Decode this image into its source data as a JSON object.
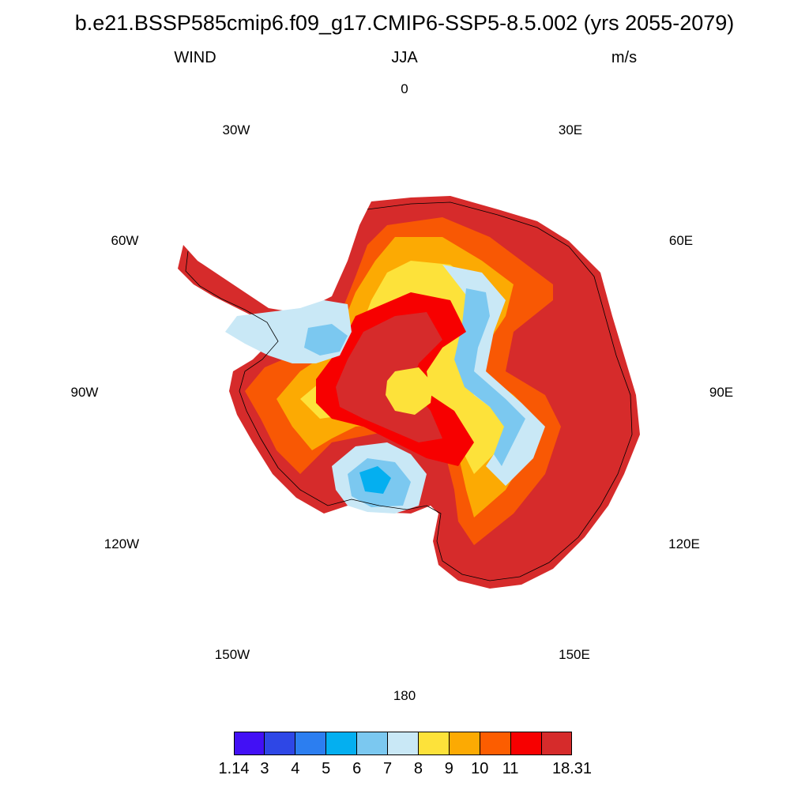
{
  "title": "b.e21.BSSP585cmip6.f09_g17.CMIP6-SSP5-8.5.002 (yrs 2055-2079)",
  "subtitle_left": "WIND",
  "subtitle_center": "JJA",
  "subtitle_right": "m/s",
  "longitude_labels": {
    "lon_0": "0",
    "lon_30e": "30E",
    "lon_60e": "60E",
    "lon_90e": "90E",
    "lon_120e": "120E",
    "lon_150e": "150E",
    "lon_180": "180",
    "lon_150w": "150W",
    "lon_120w": "120W",
    "lon_90w": "90W",
    "lon_60w": "60W",
    "lon_30w": "30W"
  },
  "colorbar": {
    "labels": [
      "1.14",
      "3",
      "4",
      "5",
      "6",
      "7",
      "8",
      "9",
      "10",
      "11",
      "18.31"
    ],
    "colors": [
      "#4210f5",
      "#2e47e6",
      "#2c7ef0",
      "#04aff0",
      "#7bc8f0",
      "#c9e8f6",
      "#fde23a",
      "#fcaa03",
      "#fc5d00",
      "#f70000",
      "#d62b2b"
    ]
  },
  "map": {
    "projection": "south polar stereographic",
    "region": "Antarctica",
    "field": "WIND",
    "units": "m/s",
    "center_wind_level": 9,
    "summary": "Lowest speeds (about 5-8 m/s) over the Ross and Weddell ice shelves and a band across East Antarctica; strongest speeds (above 11 m/s) along the coastal slopes of East Antarctica."
  }
}
